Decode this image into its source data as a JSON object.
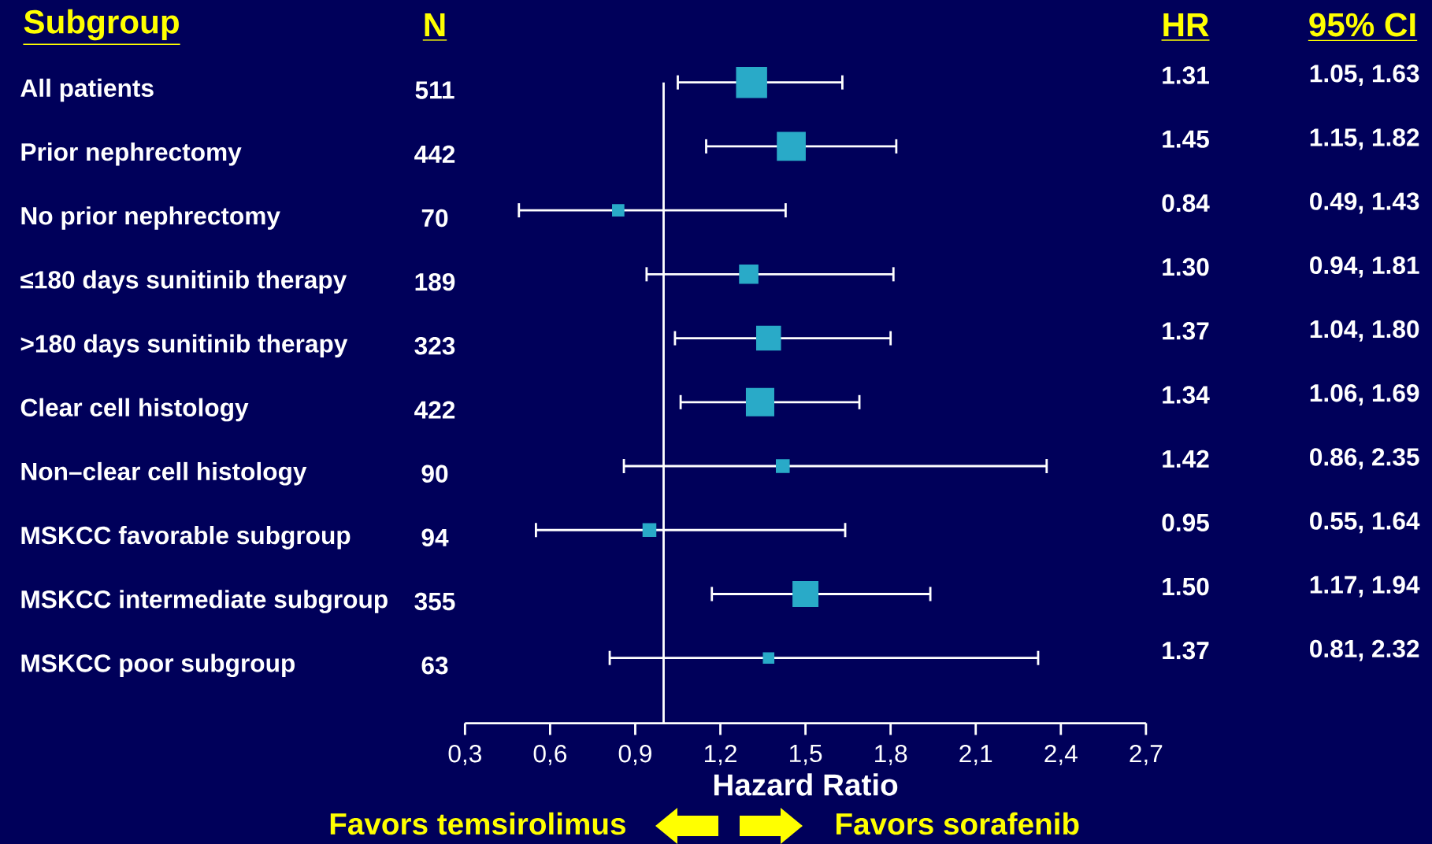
{
  "chart_data": {
    "type": "bubble",
    "orientation": "horizontal",
    "categories": [
      "All patients",
      "Prior nephrectomy",
      "No prior nephrectomy",
      "≤180 days sunitinib therapy",
      ">180 days sunitinib therapy",
      "Clear cell histology",
      "Non–clear cell histology",
      "MSKCC favorable subgroup",
      "MSKCC intermediate subgroup",
      "MSKCC poor subgroup"
    ],
    "values": [
      1.31,
      1.45,
      0.84,
      1.3,
      1.37,
      1.34,
      1.42,
      0.95,
      1.5,
      1.37
    ],
    "errors": [
      [
        1.05,
        1.63
      ],
      [
        1.15,
        1.82
      ],
      [
        0.49,
        1.43
      ],
      [
        0.94,
        1.81
      ],
      [
        1.04,
        1.8
      ],
      [
        1.06,
        1.69
      ],
      [
        0.86,
        2.35
      ],
      [
        0.55,
        1.64
      ],
      [
        1.17,
        1.94
      ],
      [
        0.81,
        2.32
      ]
    ],
    "sizes": [
      1,
      0.86,
      0.14,
      0.37,
      0.63,
      0.83,
      0.18,
      0.18,
      0.69,
      0.12
    ],
    "value_labels": [
      "1.31",
      "1.45",
      "0.84",
      "1.30",
      "1.37",
      "1.34",
      "1.42",
      "0.95",
      "1.50",
      "1.37"
    ],
    "color": "#29aac8",
    "marker": "square",
    "xlim": [
      0.3,
      2.7
    ],
    "xticks": [
      {
        "value": 0.3,
        "label": "0,3"
      },
      {
        "value": 0.6,
        "label": "0,6"
      },
      {
        "value": 0.9,
        "label": "0,9"
      },
      {
        "value": 1.2,
        "label": "1,2"
      },
      {
        "value": 1.5,
        "label": "1,5"
      },
      {
        "value": 1.8,
        "label": "1,8"
      },
      {
        "value": 2.1,
        "label": "2,1"
      },
      {
        "value": 2.4,
        "label": "2,4"
      },
      {
        "value": 2.7,
        "label": "2,7"
      }
    ],
    "xlabel": "Hazard Ratio",
    "ref_lines": [
      {
        "axis": "x",
        "value": 1.0,
        "color": "#ffffff"
      }
    ],
    "annotations": [
      "Subgroup",
      "N",
      "HR",
      "95% CI",
      "511",
      "442",
      "70",
      "189",
      "323",
      "422",
      "90",
      "94",
      "355",
      "63",
      "1.05, 1.63",
      "1.15, 1.82",
      "0.49, 1.43",
      "0.94, 1.81",
      "1.04, 1.80",
      "1.06, 1.69",
      "0.86, 2.35",
      "0.55, 1.64",
      "1.17, 1.94",
      "0.81, 2.32",
      "Favors temsirolimus",
      "Favors sorafenib"
    ]
  }
}
